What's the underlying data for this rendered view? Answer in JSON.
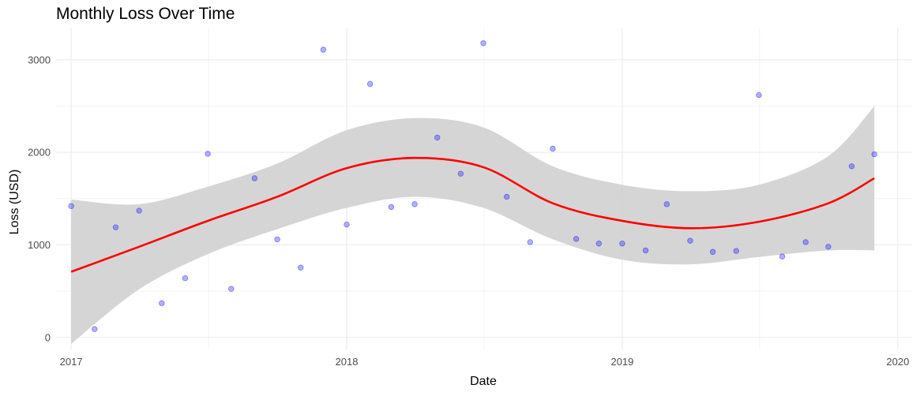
{
  "chart_data": {
    "type": "scatter",
    "title": "Monthly Loss Over Time",
    "xlabel": "Date",
    "ylabel": "Loss (USD)",
    "xlim": [
      "2016-12-12",
      "2020-01-20"
    ],
    "ylim": [
      -130,
      3340
    ],
    "x_ticks": [
      "2017",
      "2018",
      "2019",
      "2020"
    ],
    "x_tick_dates": [
      "2017-01-01",
      "2018-01-01",
      "2019-01-01",
      "2020-01-01"
    ],
    "y_ticks": [
      0,
      1000,
      2000,
      3000
    ],
    "grid": true,
    "colors": {
      "points": "#0000ff",
      "smooth": "#ff0000",
      "band": "#d3d3d3",
      "grid": "#ebebeb"
    },
    "points": [
      {
        "x": "2017-01-01",
        "y": 1420
      },
      {
        "x": "2017-02-01",
        "y": 90
      },
      {
        "x": "2017-03-01",
        "y": 1190
      },
      {
        "x": "2017-04-01",
        "y": 1370
      },
      {
        "x": "2017-05-01",
        "y": 370
      },
      {
        "x": "2017-06-01",
        "y": 640
      },
      {
        "x": "2017-07-01",
        "y": 1985
      },
      {
        "x": "2017-08-01",
        "y": 525
      },
      {
        "x": "2017-09-01",
        "y": 1720
      },
      {
        "x": "2017-10-01",
        "y": 1060
      },
      {
        "x": "2017-11-01",
        "y": 755
      },
      {
        "x": "2017-12-01",
        "y": 3110
      },
      {
        "x": "2018-01-01",
        "y": 1220
      },
      {
        "x": "2018-02-01",
        "y": 2740
      },
      {
        "x": "2018-03-01",
        "y": 1410
      },
      {
        "x": "2018-04-01",
        "y": 1440
      },
      {
        "x": "2018-05-01",
        "y": 2160
      },
      {
        "x": "2018-06-01",
        "y": 1770
      },
      {
        "x": "2018-07-01",
        "y": 3180
      },
      {
        "x": "2018-08-01",
        "y": 1520
      },
      {
        "x": "2018-09-01",
        "y": 1030
      },
      {
        "x": "2018-10-01",
        "y": 2040
      },
      {
        "x": "2018-11-01",
        "y": 1065
      },
      {
        "x": "2018-12-01",
        "y": 1015
      },
      {
        "x": "2019-01-01",
        "y": 1015
      },
      {
        "x": "2019-02-01",
        "y": 940
      },
      {
        "x": "2019-03-01",
        "y": 1440
      },
      {
        "x": "2019-04-01",
        "y": 1045
      },
      {
        "x": "2019-05-01",
        "y": 925
      },
      {
        "x": "2019-06-01",
        "y": 935
      },
      {
        "x": "2019-07-01",
        "y": 2620
      },
      {
        "x": "2019-08-01",
        "y": 875
      },
      {
        "x": "2019-09-01",
        "y": 1030
      },
      {
        "x": "2019-10-01",
        "y": 980
      },
      {
        "x": "2019-11-01",
        "y": 1850
      },
      {
        "x": "2019-12-01",
        "y": 1980
      }
    ],
    "smooth": [
      {
        "x": "2017-01-01",
        "y": 710,
        "lower": -70,
        "upper": 1490
      },
      {
        "x": "2017-04-01",
        "y": 980,
        "lower": 520,
        "upper": 1440
      },
      {
        "x": "2017-07-01",
        "y": 1260,
        "lower": 900,
        "upper": 1630
      },
      {
        "x": "2017-10-01",
        "y": 1520,
        "lower": 1170,
        "upper": 1880
      },
      {
        "x": "2018-01-01",
        "y": 1830,
        "lower": 1400,
        "upper": 2240
      },
      {
        "x": "2018-04-01",
        "y": 1940,
        "lower": 1520,
        "upper": 2370
      },
      {
        "x": "2018-07-01",
        "y": 1840,
        "lower": 1400,
        "upper": 2270
      },
      {
        "x": "2018-10-01",
        "y": 1450,
        "lower": 1060,
        "upper": 1850
      },
      {
        "x": "2019-01-01",
        "y": 1260,
        "lower": 840,
        "upper": 1650
      },
      {
        "x": "2019-04-01",
        "y": 1180,
        "lower": 790,
        "upper": 1580
      },
      {
        "x": "2019-07-01",
        "y": 1250,
        "lower": 870,
        "upper": 1650
      },
      {
        "x": "2019-10-01",
        "y": 1450,
        "lower": 940,
        "upper": 1960
      },
      {
        "x": "2019-12-01",
        "y": 1720,
        "lower": 940,
        "upper": 2500
      }
    ]
  }
}
